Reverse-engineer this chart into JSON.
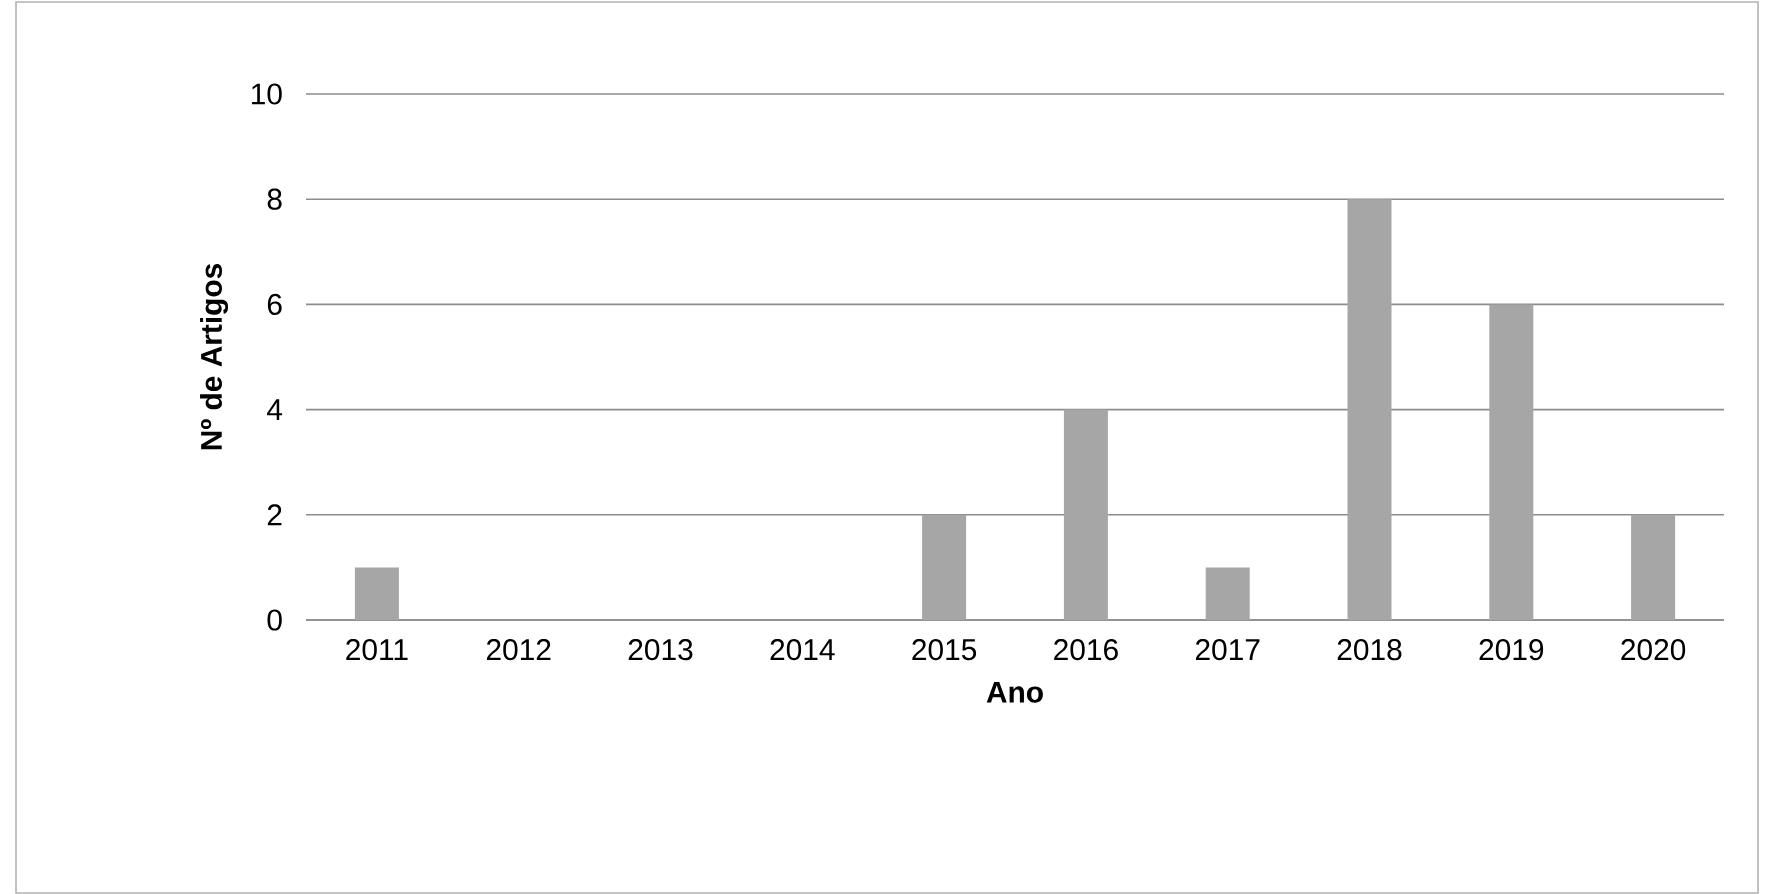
{
  "chart_data": {
    "type": "bar",
    "xlabel": "Ano",
    "ylabel": "Nº de Artigos",
    "categories": [
      "2011",
      "2012",
      "2013",
      "2014",
      "2015",
      "2016",
      "2017",
      "2018",
      "2019",
      "2020"
    ],
    "values": [
      1,
      0,
      0,
      0,
      2,
      4,
      1,
      8,
      6,
      2
    ],
    "color": "#a6a6a6",
    "ylim": [
      0,
      10
    ],
    "yticks": [
      0,
      2,
      4,
      6,
      8,
      10
    ],
    "grid": "y"
  }
}
